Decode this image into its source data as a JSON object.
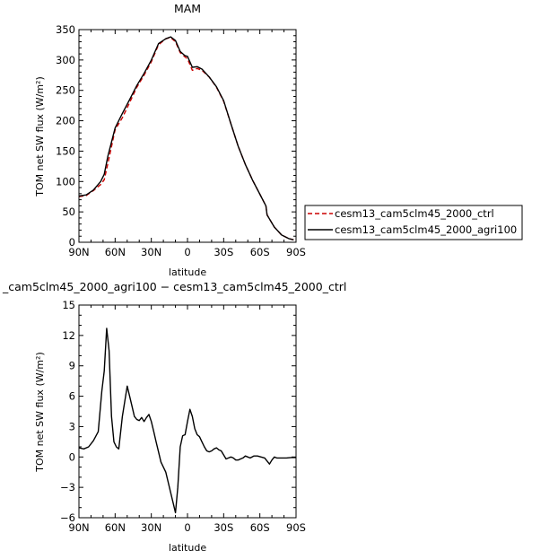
{
  "chart_data": [
    {
      "type": "line",
      "title": "MAM",
      "xlabel": "latitude",
      "ylabel": "TOM net SW flux (W/m²)",
      "xlim": [
        90,
        -90
      ],
      "ylim": [
        0,
        350
      ],
      "xticks": [
        90,
        60,
        30,
        0,
        -30,
        -60,
        -90
      ],
      "xticklabels": [
        "90N",
        "60N",
        "30N",
        "0",
        "30S",
        "60S",
        "90S"
      ],
      "yticks": [
        0,
        50,
        100,
        150,
        200,
        250,
        300,
        350
      ],
      "yticklabels": [
        "0",
        "50",
        "100",
        "150",
        "200",
        "250",
        "300",
        "350"
      ],
      "legend_position": "right",
      "series": [
        {
          "name": "cesm13_cam5clm45_2000_ctrl",
          "color": "#cc0000",
          "style": "dashed",
          "x": [
            90,
            84,
            78,
            72,
            69,
            66,
            60,
            54,
            48,
            42,
            36,
            30,
            24,
            18,
            14,
            10,
            6,
            2,
            0,
            -4,
            -8,
            -12,
            -18,
            -24,
            -30,
            -36,
            -42,
            -48,
            -54,
            -60,
            -65,
            -66,
            -72,
            -78,
            -84,
            -88
          ],
          "y": [
            75,
            77,
            85,
            95,
            103,
            130,
            185,
            205,
            230,
            255,
            275,
            297,
            325,
            335,
            337,
            330,
            312,
            305,
            302,
            283,
            286,
            283,
            272,
            255,
            232,
            195,
            158,
            128,
            102,
            79,
            60,
            45,
            25,
            12,
            6,
            4
          ]
        },
        {
          "name": "cesm13_cam5clm45_2000_agri100",
          "color": "#000000",
          "style": "solid",
          "x": [
            90,
            84,
            78,
            72,
            69,
            66,
            60,
            54,
            48,
            42,
            36,
            30,
            24,
            18,
            14,
            10,
            6,
            2,
            0,
            -4,
            -8,
            -12,
            -18,
            -24,
            -30,
            -36,
            -42,
            -48,
            -54,
            -60,
            -65,
            -66,
            -72,
            -78,
            -84,
            -88
          ],
          "y": [
            76,
            78,
            86,
            100,
            112,
            142,
            188,
            212,
            235,
            258,
            278,
            300,
            327,
            335,
            338,
            332,
            314,
            307,
            306,
            288,
            289,
            285,
            272,
            256,
            233,
            195,
            158,
            128,
            102,
            79,
            60,
            45,
            25,
            12,
            6,
            4
          ]
        }
      ]
    },
    {
      "type": "line",
      "title": "_cam5clm45_2000_agri100 − cesm13_cam5clm45_2000_ctrl",
      "xlabel": "latitude",
      "ylabel": "TOM net SW flux (W/m²)",
      "xlim": [
        90,
        -90
      ],
      "ylim": [
        -6,
        15
      ],
      "xticks": [
        90,
        60,
        30,
        0,
        -30,
        -60,
        -90
      ],
      "xticklabels": [
        "90N",
        "60N",
        "30N",
        "0",
        "30S",
        "60S",
        "90S"
      ],
      "yticks": [
        -6,
        -3,
        0,
        3,
        6,
        9,
        12,
        15
      ],
      "yticklabels": [
        "−6",
        "−3",
        "0",
        "3",
        "6",
        "9",
        "12",
        "15"
      ],
      "series": [
        {
          "color": "#000000",
          "style": "solid",
          "x": [
            90,
            86,
            82,
            78,
            74,
            71,
            69,
            67,
            65,
            63,
            61,
            59,
            57,
            54,
            52,
            50,
            48,
            46,
            44,
            42,
            40,
            38,
            36,
            34,
            32,
            30,
            28,
            26,
            24,
            22,
            20,
            18,
            16,
            14,
            12,
            10,
            8,
            6,
            4,
            2,
            0,
            -2,
            -4,
            -6,
            -8,
            -10,
            -12,
            -14,
            -16,
            -18,
            -20,
            -22,
            -24,
            -26,
            -28,
            -30,
            -32,
            -34,
            -36,
            -38,
            -40,
            -42,
            -44,
            -46,
            -48,
            -50,
            -52,
            -55,
            -58,
            -61,
            -64,
            -66,
            -68,
            -70,
            -72,
            -74,
            -76,
            -78,
            -82,
            -86,
            -90
          ],
          "y": [
            0.9,
            0.8,
            1.0,
            1.6,
            2.5,
            6.5,
            8.5,
            12.7,
            10.5,
            4.0,
            1.5,
            1.0,
            0.8,
            4.0,
            5.5,
            7.0,
            6.0,
            5.0,
            4.0,
            3.7,
            3.6,
            3.9,
            3.5,
            3.9,
            4.2,
            3.5,
            2.5,
            1.5,
            0.5,
            -0.5,
            -1.0,
            -1.5,
            -2.5,
            -3.5,
            -4.5,
            -5.5,
            -3.0,
            1.0,
            2.1,
            2.2,
            3.5,
            4.7,
            4.0,
            2.8,
            2.2,
            2.0,
            1.5,
            1.0,
            0.6,
            0.5,
            0.6,
            0.8,
            0.9,
            0.7,
            0.6,
            0.2,
            -0.2,
            -0.1,
            0.0,
            -0.1,
            -0.3,
            -0.3,
            -0.2,
            -0.1,
            0.1,
            0.0,
            -0.1,
            0.1,
            0.1,
            0.0,
            -0.1,
            -0.4,
            -0.7,
            -0.3,
            0.0,
            -0.1,
            -0.1,
            -0.1,
            -0.1,
            -0.05,
            -0.05
          ]
        }
      ]
    }
  ]
}
